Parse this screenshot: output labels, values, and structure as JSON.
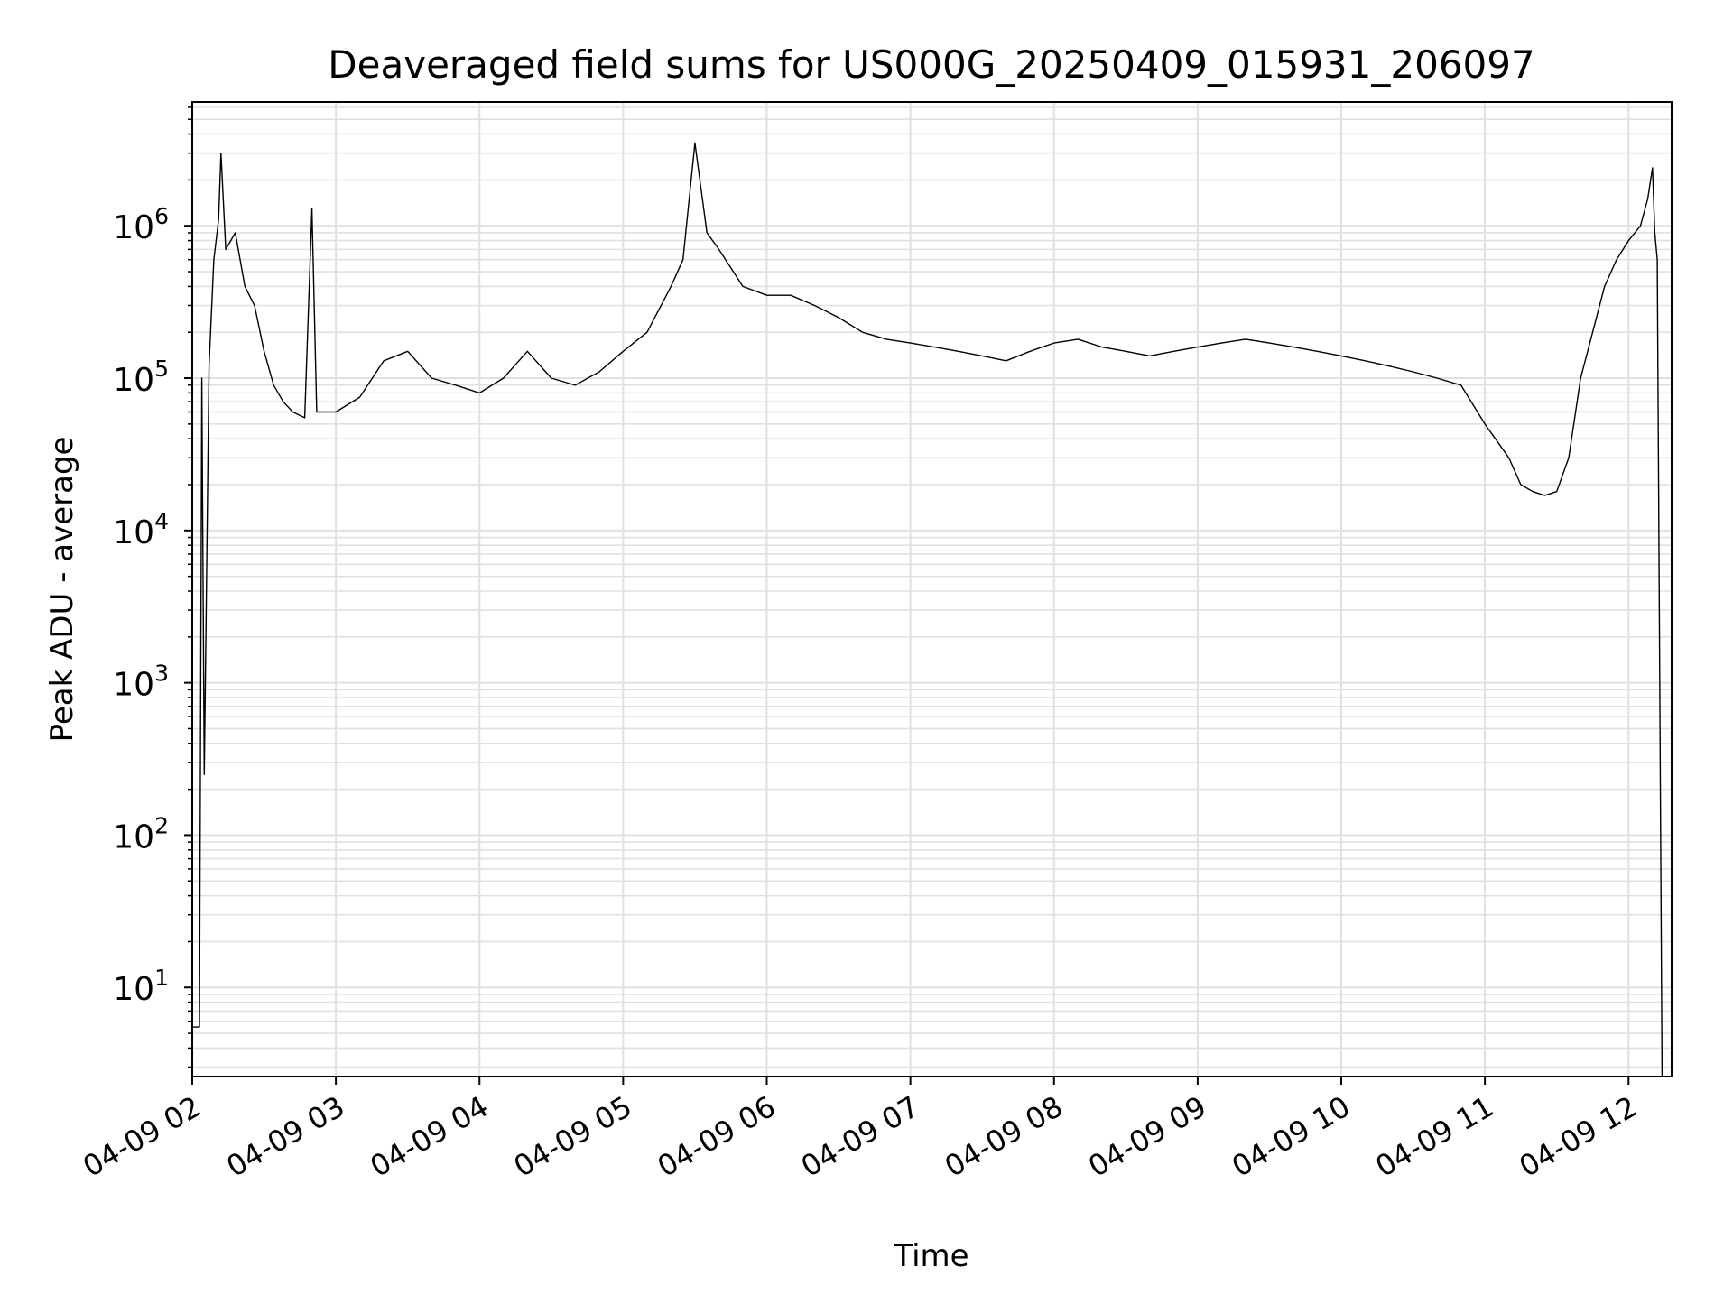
{
  "chart_data": {
    "type": "line",
    "title": "Deaveraged field sums for US000G_20250409_015931_206097",
    "xlabel": "Time",
    "ylabel": "Peak ADU - average",
    "yscale": "log",
    "ylim": [
      2.6,
      6500000
    ],
    "xlim": [
      "04-09 02:00",
      "04-09 12:18"
    ],
    "grid": true,
    "line_color": "#000000",
    "grid_color": "#e0e0e0",
    "xticks": [
      "04-09 02",
      "04-09 03",
      "04-09 04",
      "04-09 05",
      "04-09 06",
      "04-09 07",
      "04-09 08",
      "04-09 09",
      "04-09 10",
      "04-09 11",
      "04-09 12"
    ],
    "yticks": [
      {
        "base": "10",
        "exp": "1",
        "value": 10
      },
      {
        "base": "10",
        "exp": "2",
        "value": 100
      },
      {
        "base": "10",
        "exp": "3",
        "value": 1000
      },
      {
        "base": "10",
        "exp": "4",
        "value": 10000
      },
      {
        "base": "10",
        "exp": "5",
        "value": 100000
      },
      {
        "base": "10",
        "exp": "6",
        "value": 1000000
      }
    ],
    "series": [
      {
        "points": [
          [
            "04-09 02:00",
            5.5
          ],
          [
            "04-09 02:03",
            5.5
          ],
          [
            "04-09 02:04",
            100000
          ],
          [
            "04-09 02:05",
            250
          ],
          [
            "04-09 02:07",
            120000
          ],
          [
            "04-09 02:09",
            600000
          ],
          [
            "04-09 02:11",
            1100000
          ],
          [
            "04-09 02:12",
            3000000
          ],
          [
            "04-09 02:14",
            700000
          ],
          [
            "04-09 02:18",
            900000
          ],
          [
            "04-09 02:22",
            400000
          ],
          [
            "04-09 02:26",
            300000
          ],
          [
            "04-09 02:30",
            150000
          ],
          [
            "04-09 02:34",
            90000
          ],
          [
            "04-09 02:38",
            70000
          ],
          [
            "04-09 02:42",
            60000
          ],
          [
            "04-09 02:47",
            55000
          ],
          [
            "04-09 02:50",
            1300000
          ],
          [
            "04-09 02:52",
            60000
          ],
          [
            "04-09 03:00",
            60000
          ],
          [
            "04-09 03:10",
            75000
          ],
          [
            "04-09 03:20",
            130000
          ],
          [
            "04-09 03:30",
            150000
          ],
          [
            "04-09 03:40",
            100000
          ],
          [
            "04-09 03:50",
            90000
          ],
          [
            "04-09 04:00",
            80000
          ],
          [
            "04-09 04:10",
            100000
          ],
          [
            "04-09 04:20",
            150000
          ],
          [
            "04-09 04:30",
            100000
          ],
          [
            "04-09 04:40",
            90000
          ],
          [
            "04-09 04:50",
            110000
          ],
          [
            "04-09 05:00",
            150000
          ],
          [
            "04-09 05:10",
            200000
          ],
          [
            "04-09 05:20",
            400000
          ],
          [
            "04-09 05:25",
            600000
          ],
          [
            "04-09 05:30",
            3500000
          ],
          [
            "04-09 05:35",
            900000
          ],
          [
            "04-09 05:40",
            700000
          ],
          [
            "04-09 05:50",
            400000
          ],
          [
            "04-09 06:00",
            350000
          ],
          [
            "04-09 06:10",
            350000
          ],
          [
            "04-09 06:20",
            300000
          ],
          [
            "04-09 06:30",
            250000
          ],
          [
            "04-09 06:40",
            200000
          ],
          [
            "04-09 06:50",
            180000
          ],
          [
            "04-09 07:00",
            170000
          ],
          [
            "04-09 07:10",
            160000
          ],
          [
            "04-09 07:20",
            150000
          ],
          [
            "04-09 07:30",
            140000
          ],
          [
            "04-09 07:40",
            130000
          ],
          [
            "04-09 07:50",
            150000
          ],
          [
            "04-09 08:00",
            170000
          ],
          [
            "04-09 08:10",
            180000
          ],
          [
            "04-09 08:20",
            160000
          ],
          [
            "04-09 08:30",
            150000
          ],
          [
            "04-09 08:40",
            140000
          ],
          [
            "04-09 08:50",
            150000
          ],
          [
            "04-09 09:00",
            160000
          ],
          [
            "04-09 09:10",
            170000
          ],
          [
            "04-09 09:20",
            180000
          ],
          [
            "04-09 09:30",
            170000
          ],
          [
            "04-09 09:40",
            160000
          ],
          [
            "04-09 09:50",
            150000
          ],
          [
            "04-09 10:00",
            140000
          ],
          [
            "04-09 10:10",
            130000
          ],
          [
            "04-09 10:20",
            120000
          ],
          [
            "04-09 10:30",
            110000
          ],
          [
            "04-09 10:40",
            100000
          ],
          [
            "04-09 10:50",
            90000
          ],
          [
            "04-09 11:00",
            50000
          ],
          [
            "04-09 11:10",
            30000
          ],
          [
            "04-09 11:15",
            20000
          ],
          [
            "04-09 11:20",
            18000
          ],
          [
            "04-09 11:25",
            17000
          ],
          [
            "04-09 11:30",
            18000
          ],
          [
            "04-09 11:35",
            30000
          ],
          [
            "04-09 11:40",
            100000
          ],
          [
            "04-09 11:45",
            200000
          ],
          [
            "04-09 11:50",
            400000
          ],
          [
            "04-09 11:55",
            600000
          ],
          [
            "04-09 12:00",
            800000
          ],
          [
            "04-09 12:05",
            1000000
          ],
          [
            "04-09 12:08",
            1500000
          ],
          [
            "04-09 12:10",
            2400000
          ],
          [
            "04-09 12:11",
            900000
          ],
          [
            "04-09 12:12",
            600000
          ],
          [
            "04-09 12:14",
            2.6
          ]
        ]
      }
    ]
  }
}
